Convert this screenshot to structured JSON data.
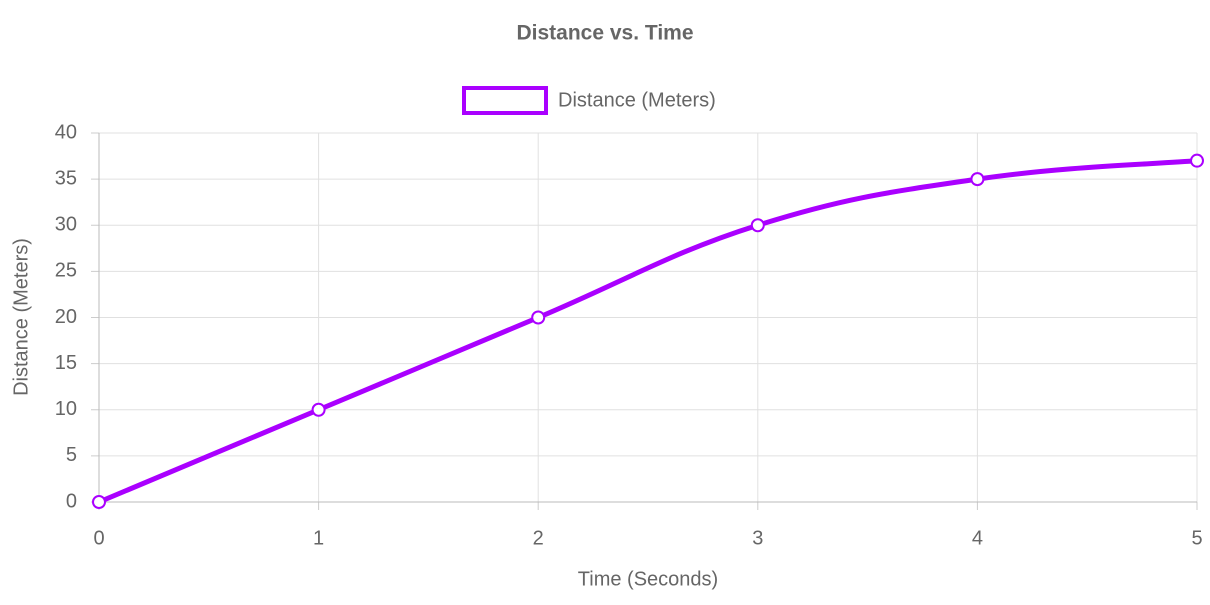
{
  "chart_data": {
    "type": "line",
    "title": "Distance vs. Time",
    "x_label": "Time (Seconds)",
    "y_label": "Distance (Meters)",
    "x": [
      0,
      1,
      2,
      3,
      4,
      5
    ],
    "series": [
      {
        "name": "Distance (Meters)",
        "color": "#aa00ff",
        "values": [
          0,
          10,
          20,
          30,
          35,
          37
        ]
      }
    ],
    "xlim": [
      0,
      5
    ],
    "xticks": [
      0,
      1,
      2,
      3,
      4,
      5
    ],
    "ylim": [
      0,
      40
    ],
    "yticks": [
      0,
      5,
      10,
      15,
      20,
      25,
      30,
      35,
      40
    ],
    "grid": true,
    "legend": "top"
  }
}
